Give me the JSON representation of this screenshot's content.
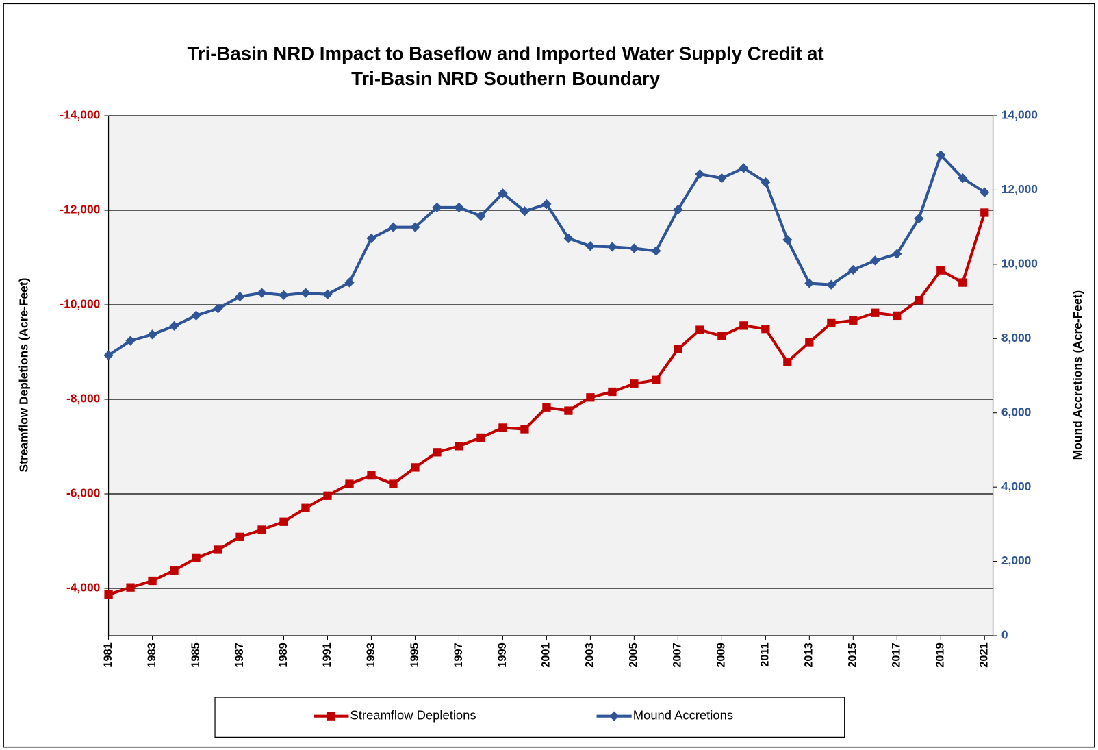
{
  "chart_data": {
    "type": "line",
    "title": [
      "Tri-Basin NRD Impact to Baseflow and Imported Water Supply Credit at",
      "Tri-Basin NRD Southern Boundary"
    ],
    "ylabel": "Streamflow Depletions (Acre-Feet)",
    "y2label": "Mound Accretions (Acre-Feet)",
    "x": [
      1981,
      1982,
      1983,
      1984,
      1985,
      1986,
      1987,
      1988,
      1989,
      1990,
      1991,
      1992,
      1993,
      1994,
      1995,
      1996,
      1997,
      1998,
      1999,
      2000,
      2001,
      2002,
      2003,
      2004,
      2005,
      2006,
      2007,
      2008,
      2009,
      2010,
      2011,
      2012,
      2013,
      2014,
      2015,
      2016,
      2017,
      2018,
      2019,
      2020,
      2021
    ],
    "xlim": [
      1981,
      2021
    ],
    "xticks": [
      1981,
      1983,
      1985,
      1987,
      1989,
      1991,
      1993,
      1995,
      1997,
      1999,
      2001,
      2003,
      2005,
      2007,
      2009,
      2011,
      2013,
      2015,
      2017,
      2019,
      2021
    ],
    "ylim": [
      -3000,
      -14000
    ],
    "yticks": [
      {
        "value": -14000,
        "label": "-14,000"
      },
      {
        "value": -12000,
        "label": "-12,000"
      },
      {
        "value": -10000,
        "label": "-10,000"
      },
      {
        "value": -8000,
        "label": "-8,000"
      },
      {
        "value": -6000,
        "label": "-6,000"
      },
      {
        "value": -4000,
        "label": "-4,000"
      }
    ],
    "y2lim": [
      0,
      14000
    ],
    "y2ticks": [
      0,
      {
        "value": 2000,
        "label": "2,000"
      },
      {
        "value": 4000,
        "label": "4,000"
      },
      {
        "value": 6000,
        "label": "6,000"
      },
      {
        "value": 8000,
        "label": "8,000"
      },
      {
        "value": 10000,
        "label": "10,000"
      },
      {
        "value": 12000,
        "label": "12,000"
      },
      {
        "value": 14000,
        "label": "14,000"
      }
    ],
    "grid": true,
    "legend": "bottom",
    "series": [
      {
        "name": "Streamflow Depletions",
        "color": "#c00000",
        "marker": "square",
        "values": [
          -3870,
          -4020,
          -4160,
          -4380,
          -4640,
          -4820,
          -5090,
          -5240,
          -5410,
          -5700,
          -5960,
          -6210,
          -6390,
          -6210,
          -6560,
          -6880,
          -7010,
          -7190,
          -7400,
          -7370,
          -7830,
          -7760,
          -8040,
          -8160,
          -8330,
          -8410,
          -9060,
          -9470,
          -9340,
          -9560,
          -9490,
          -8790,
          -9210,
          -9610,
          -9670,
          -9830,
          -9770,
          -10100,
          -10730,
          -10470,
          -11950
        ]
      },
      {
        "name": "Mound Accretions",
        "color": "#2f5597",
        "marker": "diamond",
        "axis": "y2",
        "values": [
          7550,
          7940,
          8110,
          8340,
          8620,
          8810,
          9130,
          9230,
          9170,
          9230,
          9190,
          9510,
          10700,
          11000,
          11000,
          11530,
          11530,
          11300,
          11910,
          11430,
          11620,
          10700,
          10490,
          10470,
          10430,
          10360,
          11470,
          12430,
          12320,
          12590,
          12210,
          10660,
          9490,
          9450,
          9850,
          10100,
          10280,
          11230,
          12940,
          12320,
          11940
        ]
      }
    ]
  }
}
